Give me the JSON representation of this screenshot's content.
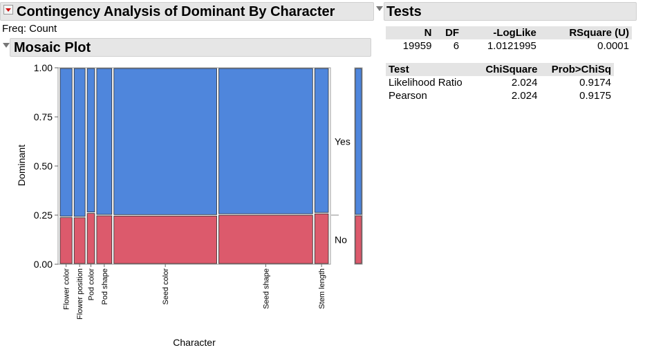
{
  "left_header": {
    "title": "Contingency Analysis of Dominant By Character"
  },
  "freq_label": "Freq: Count",
  "mosaic_header": {
    "title": "Mosaic Plot"
  },
  "tests_header": {
    "title": "Tests"
  },
  "summary_table": {
    "headers": [
      "N",
      "DF",
      "-LogLike",
      "RSquare (U)"
    ],
    "row": [
      "19959",
      "6",
      "1.0121995",
      "0.0001"
    ]
  },
  "tests_table": {
    "headers": [
      "Test",
      "ChiSquare",
      "Prob>ChiSq"
    ],
    "rows": [
      [
        "Likelihood Ratio",
        "2.024",
        "0.9174"
      ],
      [
        "Pearson",
        "2.024",
        "0.9175"
      ]
    ]
  },
  "colors": {
    "yes": "#4f86dc",
    "no": "#dc5a6c"
  },
  "chart_data": {
    "type": "mosaic",
    "xlabel": "Character",
    "ylabel": "Dominant",
    "yticks": [
      "1.00",
      "0.75",
      "0.50",
      "0.25",
      "0.00"
    ],
    "ylim": [
      0,
      1
    ],
    "levels": [
      "Yes",
      "No"
    ],
    "categories": [
      "Flower color",
      "Flower position",
      "Pod color",
      "Pod shape",
      "Seed color",
      "Seed shape",
      "Stem length"
    ],
    "counts": [
      929,
      858,
      580,
      1181,
      8023,
      7324,
      1064
    ],
    "no_fraction": [
      0.241,
      0.24,
      0.262,
      0.25,
      0.249,
      0.253,
      0.26
    ],
    "overall_no_fraction": 0.25
  }
}
